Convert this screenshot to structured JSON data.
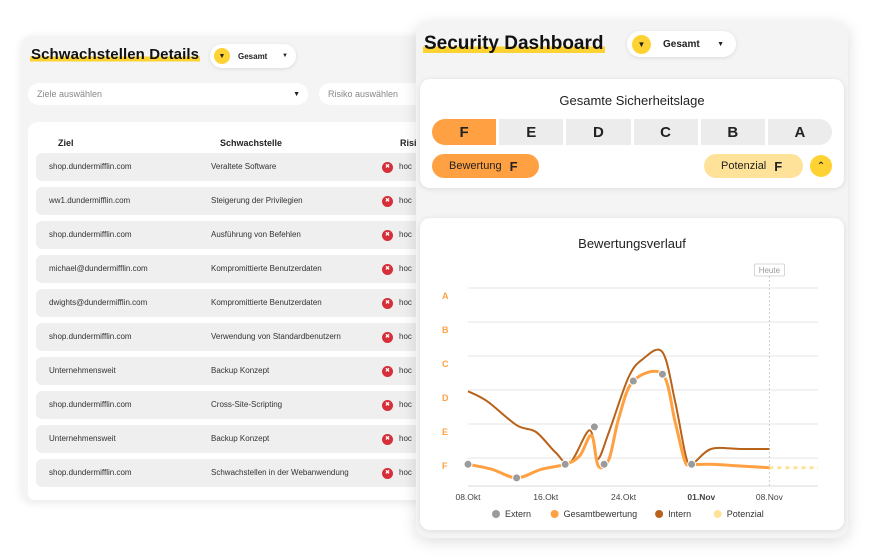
{
  "vulnerabilities": {
    "title": "Schwachstellen Details",
    "filter_label": "Gesamt",
    "targets_placeholder": "Ziele auswählen",
    "risk_placeholder": "Risiko auswählen",
    "columns": [
      "Ziel",
      "Schwachstelle",
      "Risik"
    ],
    "rows": [
      {
        "target": "shop.dundermifflin.com",
        "vulnerability": "Veraltete Software",
        "risk": "hoc"
      },
      {
        "target": "ww1.dundermifflin.com",
        "vulnerability": "Steigerung der Privilegien",
        "risk": "hoc"
      },
      {
        "target": "shop.dundermifflin.com",
        "vulnerability": "Ausführung von Befehlen",
        "risk": "hoc"
      },
      {
        "target": "michael@dundermifflin.com",
        "vulnerability": "Kompromittierte Benutzerdaten",
        "risk": "hoc"
      },
      {
        "target": "dwights@dundermifflin.com",
        "vulnerability": "Kompromittierte Benutzerdaten",
        "risk": "hoc"
      },
      {
        "target": "shop.dundermifflin.com",
        "vulnerability": "Verwendung von Standardbenutzern",
        "risk": "hoc"
      },
      {
        "target": "Unternehmensweit",
        "vulnerability": "Backup Konzept",
        "risk": "hoc"
      },
      {
        "target": "shop.dundermifflin.com",
        "vulnerability": "Cross-Site-Scripting",
        "risk": "hoc"
      },
      {
        "target": "Unternehmensweit",
        "vulnerability": "Backup Konzept",
        "risk": "hoc"
      },
      {
        "target": "shop.dundermifflin.com",
        "vulnerability": "Schwachstellen in der Webanwendung",
        "risk": "hoc"
      }
    ]
  },
  "dashboard": {
    "title": "Security Dashboard",
    "filter_label": "Gesamt",
    "posture": {
      "title": "Gesamte Sicherheitslage",
      "grades": [
        "F",
        "E",
        "D",
        "C",
        "B",
        "A"
      ],
      "active_grade": "F",
      "rating_label": "Bewertung",
      "rating_value": "F",
      "potential_label": "Potenzial",
      "potential_value": "F"
    }
  },
  "chart_data": {
    "type": "line",
    "title": "Bewertungsverlauf",
    "y_categories": [
      "F",
      "E",
      "D",
      "C",
      "B",
      "A"
    ],
    "x_ticks": [
      {
        "label": "08.Okt",
        "day": 0,
        "bold": false
      },
      {
        "label": "16.Okt",
        "day": 8,
        "bold": false
      },
      {
        "label": "24.Okt",
        "day": 16,
        "bold": false
      },
      {
        "label": "01.Nov",
        "day": 24,
        "bold": true
      },
      {
        "label": "08.Nov",
        "day": 31,
        "bold": false
      }
    ],
    "today_label": "Heute",
    "today_day": 31,
    "series": [
      {
        "name": "Extern",
        "color": "#9b9b9b",
        "marker_only": true,
        "points": [
          [
            0,
            0.05
          ],
          [
            5,
            -0.35
          ],
          [
            10,
            0.05
          ],
          [
            13,
            1.15
          ],
          [
            14,
            0.05
          ],
          [
            17,
            2.5
          ],
          [
            20,
            2.7
          ],
          [
            23,
            0.05
          ]
        ]
      },
      {
        "name": "Gesamtbewertung",
        "color": "#ffa143",
        "points": [
          [
            0,
            0.05
          ],
          [
            2.5,
            -0.1
          ],
          [
            5,
            -0.35
          ],
          [
            7.5,
            -0.1
          ],
          [
            10,
            0.05
          ],
          [
            11.5,
            0.3
          ],
          [
            12.7,
            0.9
          ],
          [
            13.4,
            0.0
          ],
          [
            14.5,
            0.2
          ],
          [
            15.5,
            1.4
          ],
          [
            17,
            2.5
          ],
          [
            20,
            2.7
          ],
          [
            21.3,
            1.3
          ],
          [
            22.3,
            0.15
          ],
          [
            23,
            0.05
          ],
          [
            25,
            0.05
          ],
          [
            28,
            0.0
          ],
          [
            31,
            -0.05
          ]
        ]
      },
      {
        "name": "Intern",
        "color": "#b8621a",
        "points": [
          [
            0,
            2.2
          ],
          [
            2,
            1.9
          ],
          [
            5,
            1.2
          ],
          [
            7,
            1.0
          ],
          [
            9,
            0.4
          ],
          [
            10.5,
            0.1
          ],
          [
            12.5,
            1.05
          ],
          [
            13.3,
            0.2
          ],
          [
            14.5,
            1.0
          ],
          [
            16.5,
            2.6
          ],
          [
            18,
            3.15
          ],
          [
            20,
            3.35
          ],
          [
            21.3,
            1.9
          ],
          [
            22.4,
            0.3
          ],
          [
            23,
            0.05
          ],
          [
            25,
            0.5
          ],
          [
            28,
            0.5
          ],
          [
            31,
            0.5
          ]
        ]
      },
      {
        "name": "Potenzial",
        "color": "#ffe29a",
        "dashed": true,
        "points": [
          [
            31,
            -0.05
          ],
          [
            36,
            -0.05
          ]
        ]
      }
    ],
    "legend": [
      "Extern",
      "Gesamtbewertung",
      "Intern",
      "Potenzial"
    ],
    "legend_position": "bottom"
  }
}
